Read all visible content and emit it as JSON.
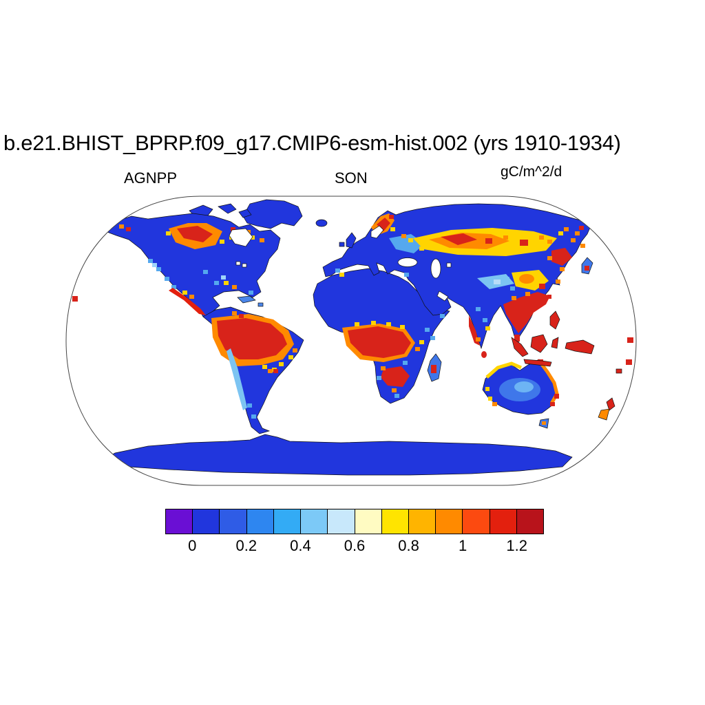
{
  "title": "b.e21.BHIST_BPRP.f09_g17.CMIP6-esm-hist.002 (yrs 1910-1934)",
  "chart_data": {
    "type": "heatmap",
    "title": "b.e21.BHIST_BPRP.f09_g17.CMIP6-esm-hist.002 (yrs 1910-1934)",
    "variable": "AGNPP",
    "season": "SON",
    "units": "gC/m^2/d",
    "years": "1910-1934",
    "projection": "Robinson",
    "grid": false,
    "ocean_fill": "#ffffff",
    "colorbar": {
      "orientation": "horizontal",
      "levels": [
        0,
        0.1,
        0.2,
        0.3,
        0.4,
        0.5,
        0.6,
        0.7,
        0.8,
        0.9,
        1,
        1.1,
        1.2
      ],
      "tick_labels": [
        "0",
        "0.2",
        "0.4",
        "0.6",
        "0.8",
        "1",
        "1.2"
      ],
      "colors": [
        "#6a0fd4",
        "#2136dd",
        "#2f5ce6",
        "#2e86f0",
        "#33abf5",
        "#7cc9f7",
        "#c8e8fb",
        "#fffbc2",
        "#ffe400",
        "#ffb400",
        "#ff8a00",
        "#fc4a10",
        "#e3200e",
        "#b8131b"
      ]
    },
    "regions": [
      {
        "region": "Amazon Basin",
        "approx_value": "> 1.2"
      },
      {
        "region": "Congo Basin",
        "approx_value": "> 1.2"
      },
      {
        "region": "Southeast Asia / Indochina",
        "approx_value": "> 1.2"
      },
      {
        "region": "Maritime Continent (Indonesia, New Guinea, Philippines)",
        "approx_value": "> 1.2"
      },
      {
        "region": "Sahara and Arabian Peninsula",
        "approx_value": "0 - 0.1"
      },
      {
        "region": "High-latitude Canada and Siberia",
        "approx_value": "0 - 0.1"
      },
      {
        "region": "Boreal belt (W Canada, Scandinavia, S Siberia)",
        "approx_value": "0.6 - 1.2"
      },
      {
        "region": "Australia interior",
        "approx_value": "0.1 - 0.4"
      },
      {
        "region": "Australia N/E coastal fringe",
        "approx_value": "0.7 - 1.2"
      },
      {
        "region": "Greenland and Antarctica",
        "approx_value": "0 - 0.1"
      }
    ]
  }
}
